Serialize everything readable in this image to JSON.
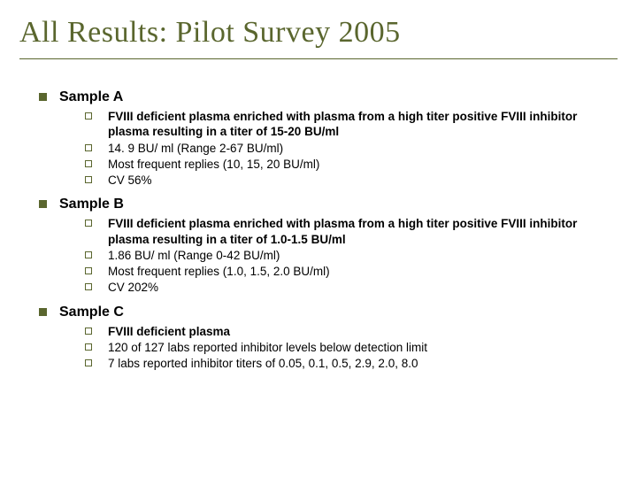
{
  "title": "All Results: Pilot Survey 2005",
  "colors": {
    "accent": "#5a662e",
    "text": "#000000",
    "background": "#ffffff"
  },
  "typography": {
    "title_font": "Times New Roman",
    "title_size_pt": 26,
    "body_font": "Arial",
    "sample_label_size_pt": 12,
    "sub_text_size_pt": 10
  },
  "samples": [
    {
      "label": "Sample A",
      "items": [
        {
          "text": "FVIII deficient plasma enriched with plasma from a high titer positive FVIII inhibitor plasma resulting in a titer of 15-20 BU/ml",
          "bold": true
        },
        {
          "text": "14. 9 BU/ ml (Range 2-67 BU/ml)",
          "bold": false
        },
        {
          "text": "Most frequent replies (10, 15, 20 BU/ml)",
          "bold": false
        },
        {
          "text": "CV 56%",
          "bold": false
        }
      ]
    },
    {
      "label": "Sample B",
      "items": [
        {
          "text": "FVIII deficient plasma enriched with plasma from a high titer positive FVIII inhibitor plasma resulting in a titer of 1.0-1.5 BU/ml",
          "bold": true
        },
        {
          "text": "1.86 BU/ ml (Range 0-42 BU/ml)",
          "bold": false
        },
        {
          "text": "Most frequent replies (1.0, 1.5, 2.0 BU/ml)",
          "bold": false
        },
        {
          "text": "CV 202%",
          "bold": false
        }
      ]
    },
    {
      "label": "Sample C",
      "items": [
        {
          "text": "FVIII deficient plasma",
          "bold": true
        },
        {
          "text": "120 of 127 labs reported inhibitor levels below detection limit",
          "bold": false
        },
        {
          "text": "7 labs reported inhibitor titers of 0.05, 0.1, 0.5, 2.9, 2.0, 8.0",
          "bold": false
        }
      ]
    }
  ]
}
